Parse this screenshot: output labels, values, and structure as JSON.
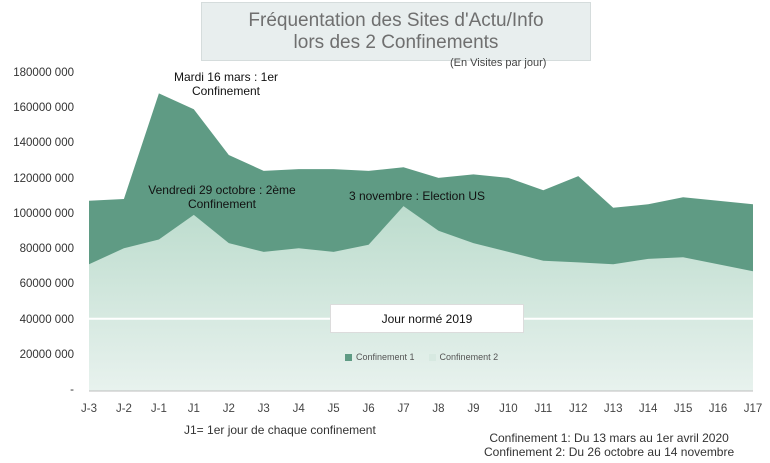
{
  "title_lines": [
    "Fréquentation des Sites d'Actu/Info",
    "lors des 2 Confinements"
  ],
  "subtitle": "(En Visites par jour)",
  "chart_data": {
    "type": "area",
    "categories": [
      "J-3",
      "J-2",
      "J-1",
      "J1",
      "J2",
      "J3",
      "J4",
      "J5",
      "J6",
      "J7",
      "J8",
      "J9",
      "J10",
      "J11",
      "J12",
      "J13",
      "J14",
      "J15",
      "J16",
      "J17"
    ],
    "series": [
      {
        "name": "Confinement 1",
        "color": "#5f9b84",
        "values": [
          108000000,
          109000000,
          169000000,
          160000000,
          134000000,
          125000000,
          126000000,
          126000000,
          125000000,
          127000000,
          121000000,
          123000000,
          121000000,
          114000000,
          122000000,
          104000000,
          106000000,
          110000000,
          108000000,
          106000000
        ]
      },
      {
        "name": "Confinement 2",
        "color": "#c9e2d8",
        "values": [
          72000000,
          81000000,
          86000000,
          100000000,
          84000000,
          79000000,
          81000000,
          79000000,
          83000000,
          105000000,
          91000000,
          84000000,
          79000000,
          74000000,
          73000000,
          72000000,
          75000000,
          76000000,
          72000000,
          68000000
        ]
      }
    ],
    "ylim": [
      0,
      180000000
    ],
    "yticks": [
      "-",
      "20000 000",
      "40000 000",
      "60000 000",
      "80000 000",
      "100000 000",
      "120000 000",
      "140000 000",
      "160000 000",
      "180000 000"
    ],
    "reference_line": {
      "label": "Jour normé 2019",
      "value": 41000000
    },
    "annotations": [
      {
        "text": [
          "Mardi 16 mars : 1er",
          "Confinement"
        ],
        "x": "J-1"
      },
      {
        "text": [
          "Vendredi 29 octobre : 2ème",
          "Confinement"
        ],
        "x": "J1"
      },
      {
        "text": [
          "3 novembre : Election US"
        ],
        "x": "J7"
      }
    ],
    "legend_position": "bottom-center",
    "grid": false
  },
  "footer_left": "J1= 1er jour de chaque confinement",
  "footer_right": [
    "Confinement 1: Du 13 mars au 1er avril 2020",
    "Confinement 2: Du 26 octobre au 14 novembre"
  ]
}
